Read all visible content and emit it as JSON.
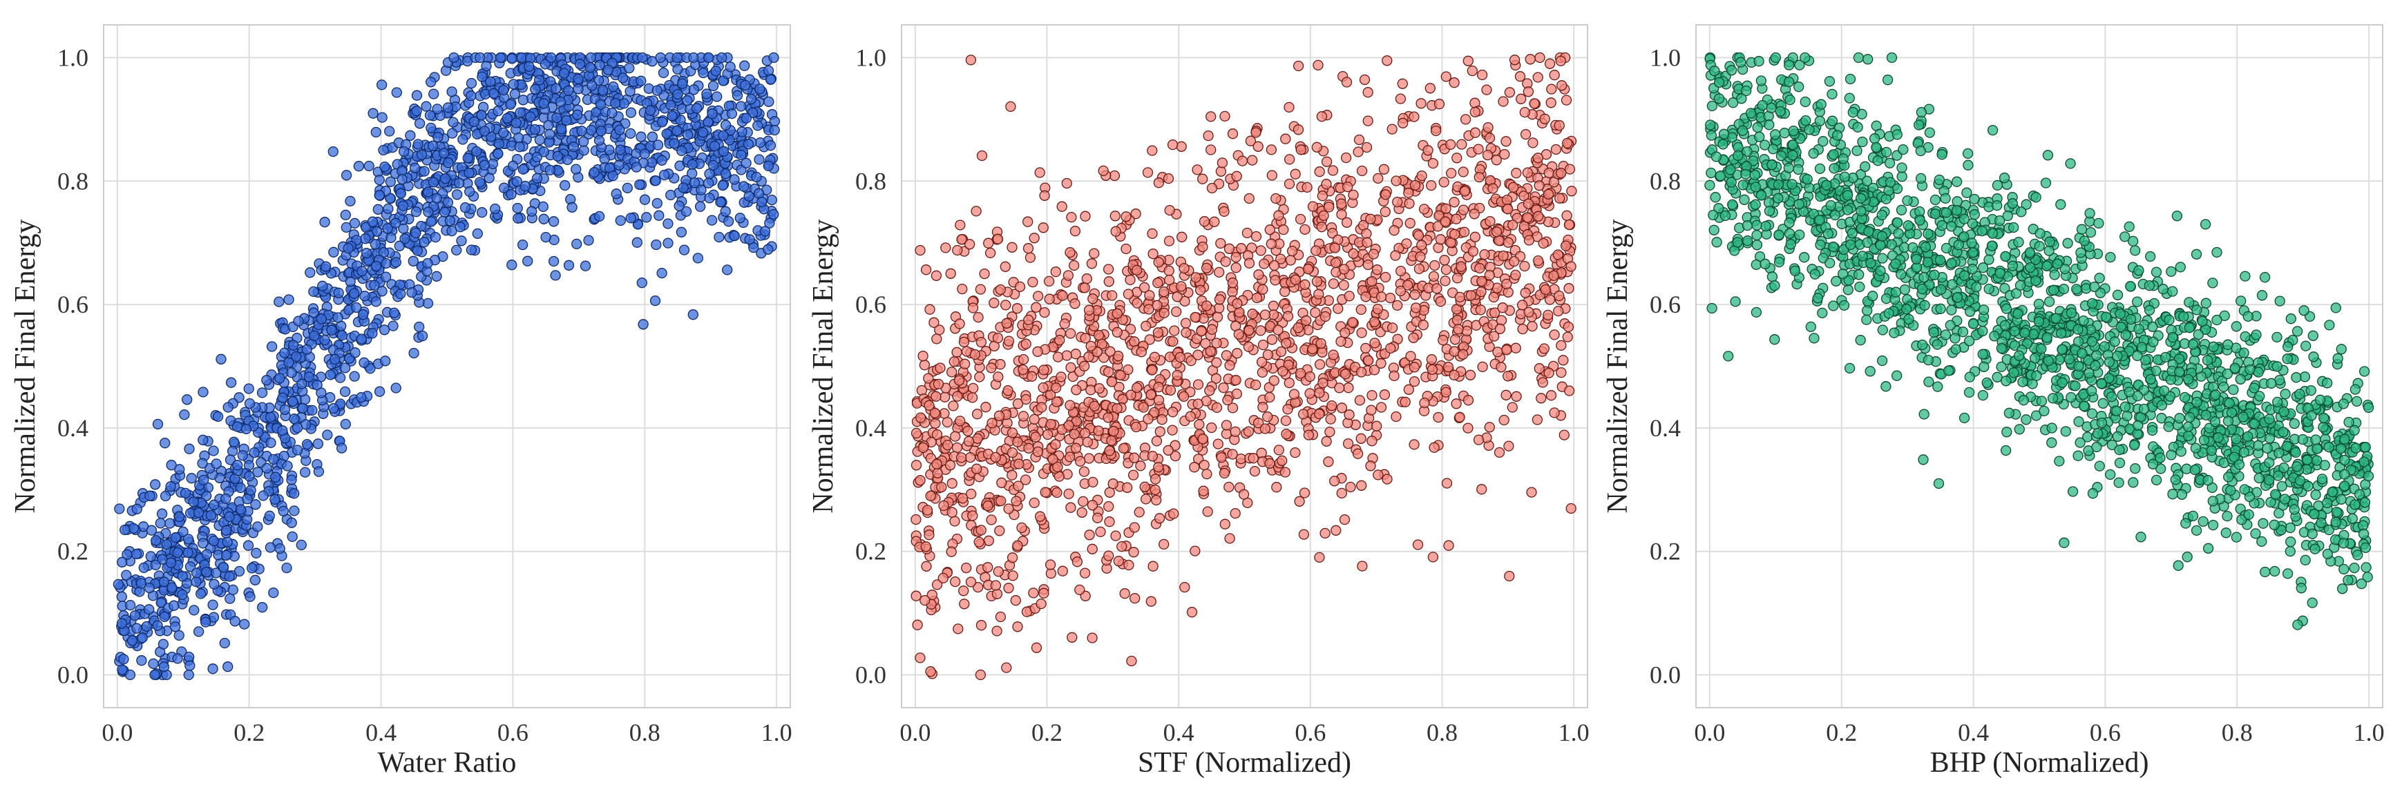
{
  "chart_data": [
    {
      "type": "scatter",
      "xlabel": "Water Ratio",
      "ylabel": "Normalized Final Energy",
      "xlim": [
        0.0,
        1.0
      ],
      "ylim": [
        0.0,
        1.0
      ],
      "xticks": [
        "0.0",
        "0.2",
        "0.4",
        "0.6",
        "0.8",
        "1.0"
      ],
      "yticks": [
        "0.0",
        "0.2",
        "0.4",
        "0.6",
        "0.8",
        "1.0"
      ],
      "grid": true,
      "color": "#3d6fd9",
      "edge_color": "#0e2a6b",
      "n_points": 2000,
      "trend": "concave rising: near 0.1 at x=0, peaks ~0.9 at x≈0.6, slight decline to ~0.88 at x=1.0",
      "curve": [
        [
          0.0,
          0.08
        ],
        [
          0.2,
          0.3
        ],
        [
          0.4,
          0.7
        ],
        [
          0.55,
          0.88
        ],
        [
          0.7,
          0.92
        ],
        [
          1.0,
          0.87
        ]
      ],
      "spread": 0.1
    },
    {
      "type": "scatter",
      "xlabel": "STF (Normalized)",
      "ylabel": "Normalized Final Energy",
      "xlim": [
        0.0,
        1.0
      ],
      "ylim": [
        0.0,
        1.0
      ],
      "xticks": [
        "0.0",
        "0.2",
        "0.4",
        "0.6",
        "0.8",
        "1.0"
      ],
      "yticks": [
        "0.0",
        "0.2",
        "0.4",
        "0.6",
        "0.8",
        "1.0"
      ],
      "grid": true,
      "color": "#f08a80",
      "edge_color": "#6b1a12",
      "n_points": 2000,
      "trend": "positive linear, wide scatter: ~0.35 at x=0 rising to ~0.75 at x=1.0",
      "curve": [
        [
          0.0,
          0.35
        ],
        [
          0.5,
          0.55
        ],
        [
          1.0,
          0.75
        ]
      ],
      "spread": 0.16
    },
    {
      "type": "scatter",
      "xlabel": "BHP (Normalized)",
      "ylabel": "Normalized Final Energy",
      "xlim": [
        0.0,
        1.0
      ],
      "ylim": [
        0.0,
        1.0
      ],
      "xticks": [
        "0.0",
        "0.2",
        "0.4",
        "0.6",
        "0.8",
        "1.0"
      ],
      "yticks": [
        "0.0",
        "0.2",
        "0.4",
        "0.6",
        "0.8",
        "1.0"
      ],
      "grid": true,
      "color": "#2fb883",
      "edge_color": "#0b4a33",
      "n_points": 2000,
      "trend": "negative linear: ~0.88 at x=0 falling to ~0.3 at x=1.0",
      "curve": [
        [
          0.0,
          0.88
        ],
        [
          0.5,
          0.58
        ],
        [
          1.0,
          0.3
        ]
      ],
      "spread": 0.1
    }
  ]
}
